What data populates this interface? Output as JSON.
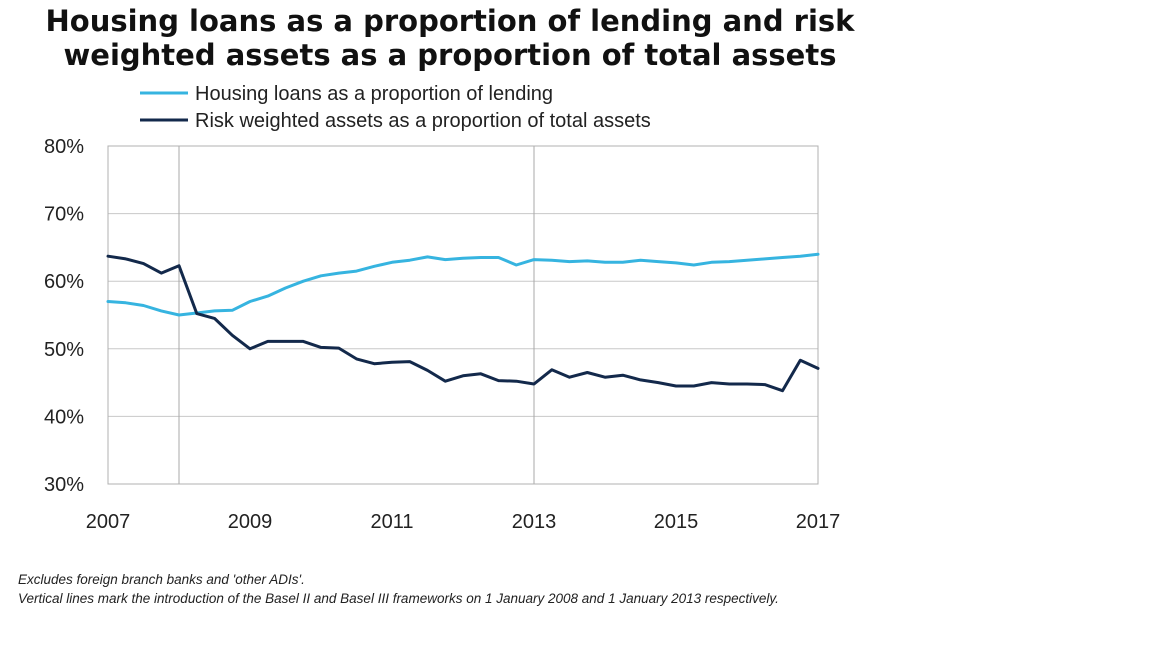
{
  "chart_data": {
    "type": "line",
    "title": "Housing loans as a proportion of lending and risk weighted assets as a proportion of total assets",
    "xlabel": "",
    "ylabel": "",
    "xlim": [
      2007,
      2017
    ],
    "ylim": [
      30,
      80
    ],
    "x_ticks": [
      "2007",
      "2009",
      "2011",
      "2013",
      "2015",
      "2017"
    ],
    "y_ticks": [
      "30%",
      "40%",
      "50%",
      "60%",
      "70%",
      "80%"
    ],
    "grid": "horizontal",
    "legend_position": "top",
    "vertical_lines": [
      2008,
      2013
    ],
    "series": [
      {
        "name": "Housing loans as a proportion of lending",
        "color": "#36b4e0",
        "x": [
          2007.0,
          2007.25,
          2007.5,
          2007.75,
          2008.0,
          2008.25,
          2008.5,
          2008.75,
          2009.0,
          2009.25,
          2009.5,
          2009.75,
          2010.0,
          2010.25,
          2010.5,
          2010.75,
          2011.0,
          2011.25,
          2011.5,
          2011.75,
          2012.0,
          2012.25,
          2012.5,
          2012.75,
          2013.0,
          2013.25,
          2013.5,
          2013.75,
          2014.0,
          2014.25,
          2014.5,
          2014.75,
          2015.0,
          2015.25,
          2015.5,
          2015.75,
          2016.0,
          2016.25,
          2016.5,
          2016.75,
          2017.0
        ],
        "values": [
          57.0,
          56.8,
          56.4,
          55.6,
          55.0,
          55.3,
          55.6,
          55.7,
          57.0,
          57.8,
          59.0,
          60.0,
          60.8,
          61.2,
          61.5,
          62.2,
          62.8,
          63.1,
          63.6,
          63.2,
          63.4,
          63.5,
          63.5,
          62.4,
          63.2,
          63.1,
          62.9,
          63.0,
          62.8,
          62.8,
          63.1,
          62.9,
          62.7,
          62.4,
          62.8,
          62.9,
          63.1,
          63.3,
          63.5,
          63.7,
          64.0
        ]
      },
      {
        "name": "Risk weighted assets as a proportion of total assets",
        "color": "#13294b",
        "x": [
          2007.0,
          2007.25,
          2007.5,
          2007.75,
          2008.0,
          2008.25,
          2008.5,
          2008.75,
          2009.0,
          2009.25,
          2009.5,
          2009.75,
          2010.0,
          2010.25,
          2010.5,
          2010.75,
          2011.0,
          2011.25,
          2011.5,
          2011.75,
          2012.0,
          2012.25,
          2012.5,
          2012.75,
          2013.0,
          2013.25,
          2013.5,
          2013.75,
          2014.0,
          2014.25,
          2014.5,
          2014.75,
          2015.0,
          2015.25,
          2015.5,
          2015.75,
          2016.0,
          2016.25,
          2016.5,
          2016.75,
          2017.0
        ],
        "values": [
          63.7,
          63.3,
          62.6,
          61.2,
          62.3,
          55.2,
          54.5,
          52.0,
          50.0,
          51.1,
          51.1,
          51.1,
          50.2,
          50.1,
          48.5,
          47.8,
          48.0,
          48.1,
          46.8,
          45.2,
          46.0,
          46.3,
          45.3,
          45.2,
          44.8,
          46.9,
          45.8,
          46.5,
          45.8,
          46.1,
          45.4,
          45.0,
          44.5,
          44.5,
          45.0,
          44.8,
          44.8,
          44.7,
          43.8,
          48.3,
          47.1
        ]
      }
    ]
  },
  "footnote": {
    "line1": "Excludes foreign branch banks and 'other ADIs'.",
    "line2": "Vertical  lines mark the introduction of the Basel II and Basel III frameworks on 1 January 2008 and 1 January 2013 respectively."
  }
}
